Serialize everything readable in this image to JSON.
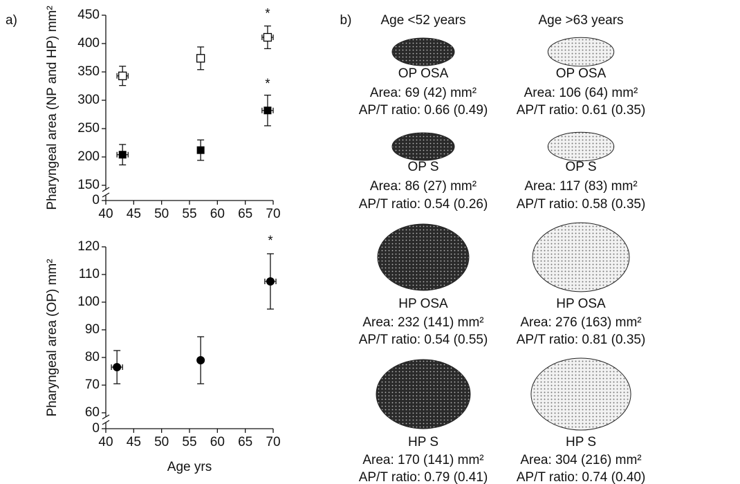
{
  "chart_data": [
    {
      "type": "scatter",
      "panel_label": "a)",
      "y_label": "Pharyngeal area (NP and HP) mm²",
      "xlim": [
        40,
        70
      ],
      "xticks": [
        40,
        45,
        50,
        55,
        60,
        65,
        70
      ],
      "ylim": [
        150,
        450
      ],
      "yticks": [
        0,
        150,
        200,
        250,
        300,
        350,
        400,
        450
      ],
      "axis_break": true,
      "series": [
        {
          "marker": "square-open",
          "color": "#000000",
          "x": [
            43,
            57,
            69
          ],
          "values": [
            343,
            374,
            411
          ],
          "yerr": [
            17,
            20,
            20
          ],
          "xerr": [
            1,
            0,
            1
          ]
        },
        {
          "marker": "square",
          "color": "#000000",
          "x": [
            43,
            57,
            69
          ],
          "values": [
            204,
            212,
            282
          ],
          "yerr": [
            18,
            18,
            27
          ],
          "xerr": [
            1,
            0,
            1
          ]
        }
      ],
      "annotations": [
        {
          "text": "*",
          "x": 69,
          "y": 452
        },
        {
          "text": "*",
          "x": 69,
          "y": 328
        }
      ]
    },
    {
      "type": "scatter",
      "y_label": "Pharyngeal area (OP)  mm²",
      "x_label": "Age  yrs",
      "xlim": [
        40,
        70
      ],
      "xticks": [
        40,
        45,
        50,
        55,
        60,
        65,
        70
      ],
      "ylim": [
        60,
        120
      ],
      "yticks": [
        0,
        60,
        70,
        80,
        90,
        100,
        110,
        120
      ],
      "axis_break": true,
      "series": [
        {
          "marker": "circle",
          "color": "#000000",
          "x": [
            42,
            57,
            69.5
          ],
          "values": [
            76.5,
            79,
            107.5
          ],
          "yerr": [
            6,
            8.5,
            10
          ],
          "xerr": [
            1,
            0,
            1
          ]
        }
      ],
      "annotations": [
        {
          "text": "*",
          "x": 69.5,
          "y": 122
        }
      ]
    }
  ],
  "panel_b": {
    "label": "b)",
    "columns": [
      {
        "heading": "Age <52 years",
        "items": [
          {
            "name": "OP OSA",
            "area": "Area: 69 (42) mm²",
            "ratio": "AP/T ratio: 0.66 (0.49)"
          },
          {
            "name": "OP S",
            "area": "Area: 86 (27) mm²",
            "ratio": "AP/T ratio: 0.54 (0.26)"
          },
          {
            "name": "HP OSA",
            "area": "Area: 232 (141) mm²",
            "ratio": "AP/T ratio: 0.54 (0.55)"
          },
          {
            "name": "HP S",
            "area": "Area: 170 (141) mm²",
            "ratio": "AP/T ratio: 0.79 (0.41)"
          }
        ]
      },
      {
        "heading": "Age >63 years",
        "items": [
          {
            "name": "OP OSA",
            "area": "Area: 106 (64) mm²",
            "ratio": "AP/T ratio: 0.61 (0.35)"
          },
          {
            "name": "OP S",
            "area": "Area: 117 (83) mm²",
            "ratio": "AP/T ratio: 0.58 (0.35)"
          },
          {
            "name": "HP OSA",
            "area": "Area: 276 (163) mm²",
            "ratio": "AP/T ratio: 0.81 (0.35)"
          },
          {
            "name": "HP S",
            "area": "Area: 304 (216) mm²",
            "ratio": "AP/T ratio: 0.74 (0.40)"
          }
        ]
      }
    ]
  }
}
